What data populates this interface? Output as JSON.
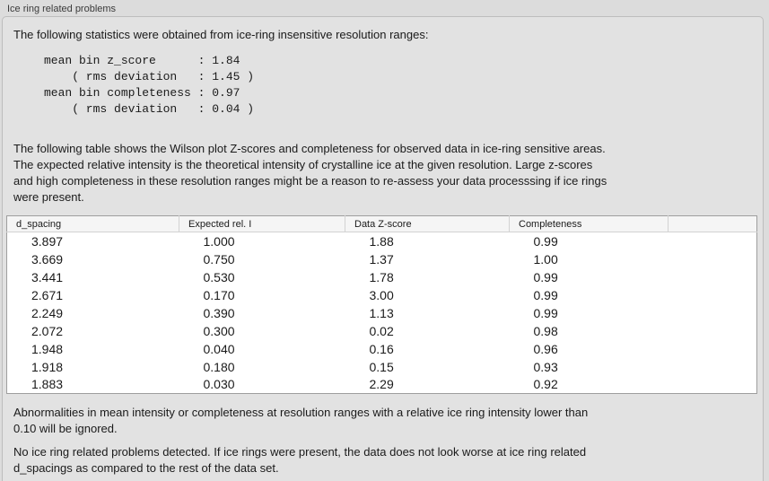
{
  "panel": {
    "title": "Ice ring related problems"
  },
  "intro": {
    "text": "The following statistics were obtained from ice-ring insensitive resolution ranges:"
  },
  "stats_block": {
    "lines": [
      "mean bin z_score      : 1.84",
      "    ( rms deviation   : 1.45 )",
      "mean bin completeness : 0.97",
      "    ( rms deviation   : 0.04 )"
    ],
    "mean_bin_z_score": "1.84",
    "z_score_rms_deviation": "1.45",
    "mean_bin_completeness": "0.97",
    "completeness_rms_deviation": "0.04"
  },
  "description": {
    "lines": [
      "The following table shows the Wilson plot Z-scores and completeness for observed data in ice-ring sensitive areas.",
      "The expected relative intensity is the theoretical intensity of crystalline ice at the given resolution. Large z-scores",
      "and high completeness in these resolution ranges might be a reason to re-assess your data processsing if ice rings",
      "were present."
    ]
  },
  "table": {
    "columns": [
      "d_spacing",
      "Expected rel. I",
      "Data Z-score",
      "Completeness",
      ""
    ],
    "rows": [
      [
        "3.897",
        "1.000",
        "1.88",
        "0.99"
      ],
      [
        "3.669",
        "0.750",
        "1.37",
        "1.00"
      ],
      [
        "3.441",
        "0.530",
        "1.78",
        "0.99"
      ],
      [
        "2.671",
        "0.170",
        "3.00",
        "0.99"
      ],
      [
        "2.249",
        "0.390",
        "1.13",
        "0.99"
      ],
      [
        "2.072",
        "0.300",
        "0.02",
        "0.98"
      ],
      [
        "1.948",
        "0.040",
        "0.16",
        "0.96"
      ],
      [
        "1.918",
        "0.180",
        "0.15",
        "0.93"
      ],
      [
        "1.883",
        "0.030",
        "2.29",
        "0.92"
      ]
    ]
  },
  "note": {
    "lines": [
      "Abnormalities in mean intensity or completeness at resolution ranges with a relative ice ring intensity lower than",
      "0.10 will be ignored."
    ]
  },
  "conclusion": {
    "lines": [
      "No ice ring related problems detected. If ice rings were present, the data does not look worse at ice ring related",
      "d_spacings as compared to the rest of the data set."
    ]
  },
  "colors": {
    "window_bg": "#dcdcdc",
    "box_bg": "#e2e2e2",
    "box_border": "#bdbdbd",
    "table_bg": "#ffffff",
    "table_border": "#9e9e9e",
    "header_bg": "#f5f5f5",
    "header_separator": "#d2d2d2",
    "text": "#1a1a1a",
    "title_text": "#3a3a3a"
  }
}
